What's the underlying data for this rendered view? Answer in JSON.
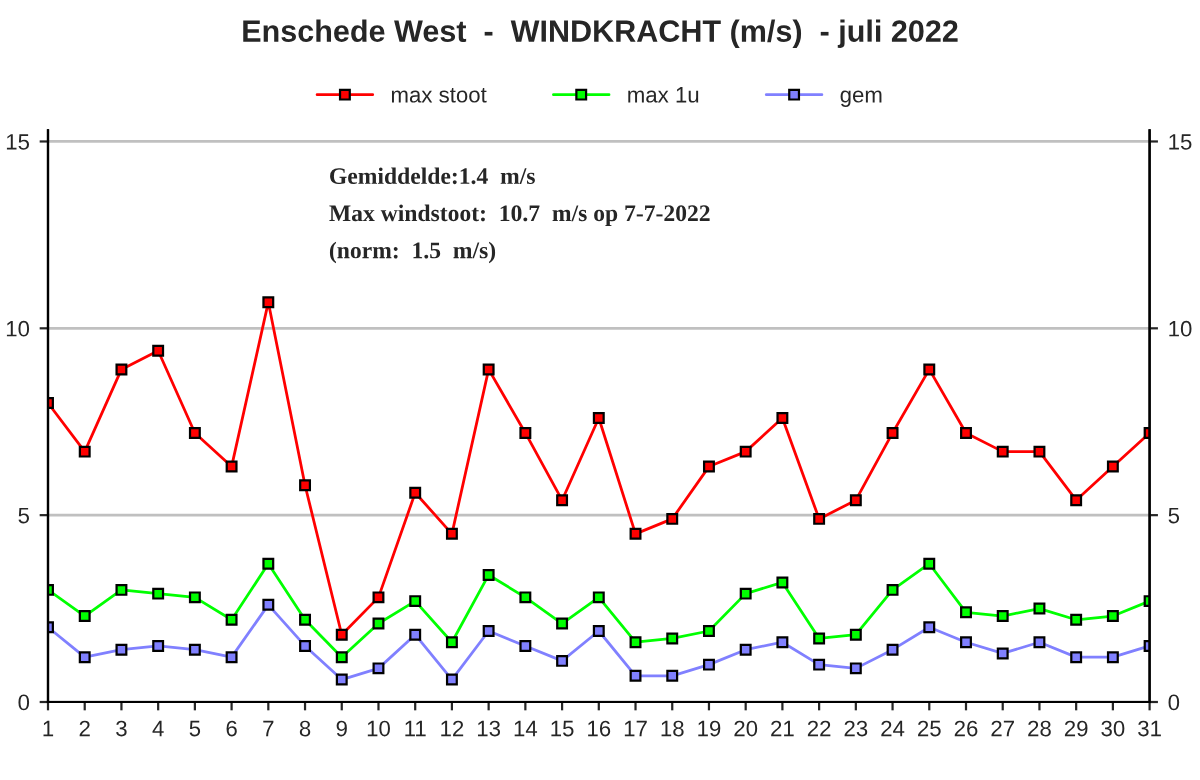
{
  "chart_data": {
    "type": "line",
    "title": "Enschede West  -  WINDKRACHT (m/s)  - juli 2022",
    "x": [
      1,
      2,
      3,
      4,
      5,
      6,
      7,
      8,
      9,
      10,
      11,
      12,
      13,
      14,
      15,
      16,
      17,
      18,
      19,
      20,
      21,
      22,
      23,
      24,
      25,
      26,
      27,
      28,
      29,
      30,
      31
    ],
    "series": [
      {
        "name": "max stoot",
        "color": "#ff0000",
        "values": [
          8.0,
          6.7,
          8.9,
          9.4,
          7.2,
          6.3,
          10.7,
          5.8,
          1.8,
          2.8,
          5.6,
          4.5,
          8.9,
          7.2,
          5.4,
          7.6,
          4.5,
          4.9,
          6.3,
          6.7,
          7.6,
          4.9,
          5.4,
          7.2,
          8.9,
          7.2,
          6.7,
          6.7,
          5.4,
          6.3,
          7.2
        ]
      },
      {
        "name": "max 1u",
        "color": "#00ff00",
        "values": [
          3.0,
          2.3,
          3.0,
          2.9,
          2.8,
          2.2,
          3.7,
          2.2,
          1.2,
          2.1,
          2.7,
          1.6,
          3.4,
          2.8,
          2.1,
          2.8,
          1.6,
          1.7,
          1.9,
          2.9,
          3.2,
          1.7,
          1.8,
          3.0,
          3.7,
          2.4,
          2.3,
          2.5,
          2.2,
          2.3,
          2.7
        ]
      },
      {
        "name": "gem",
        "color": "#8080ff",
        "values": [
          2.0,
          1.2,
          1.4,
          1.5,
          1.4,
          1.2,
          2.6,
          1.5,
          0.6,
          0.9,
          1.8,
          0.6,
          1.9,
          1.5,
          1.1,
          1.9,
          0.7,
          0.7,
          1.0,
          1.4,
          1.6,
          1.0,
          0.9,
          1.4,
          2.0,
          1.6,
          1.3,
          1.6,
          1.2,
          1.2,
          1.5
        ]
      }
    ],
    "annotations": [
      "Gemiddelde:1.4  m/s",
      "Max windstoot:  10.7  m/s op 7-7-2022",
      "(norm:  1.5  m/s)"
    ],
    "xlim": [
      1,
      31
    ],
    "xticks": [
      1,
      2,
      3,
      4,
      5,
      6,
      7,
      8,
      9,
      10,
      11,
      12,
      13,
      14,
      15,
      16,
      17,
      18,
      19,
      20,
      21,
      22,
      23,
      24,
      25,
      26,
      27,
      28,
      29,
      30,
      31
    ],
    "ylim": [
      0,
      15.3
    ],
    "yticks": [
      0,
      5,
      10,
      15
    ],
    "y2lim": [
      0,
      15.3
    ],
    "y2ticks": [
      0,
      5,
      10,
      15
    ],
    "grid": "y",
    "legend": "top",
    "marker": "square",
    "line_style": "solid"
  }
}
